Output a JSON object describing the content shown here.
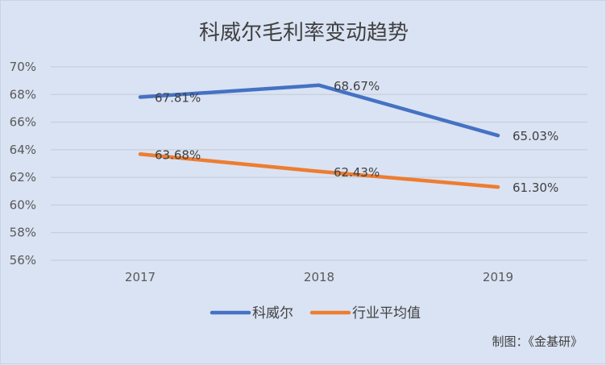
{
  "chart_data": {
    "type": "line",
    "title": "科威尔毛利率变动趋势",
    "categories": [
      "2017",
      "2018",
      "2019"
    ],
    "series": [
      {
        "name": "科威尔",
        "values": [
          67.81,
          68.67,
          65.03
        ],
        "labels": [
          "67.81%",
          "68.67%",
          "65.03%"
        ],
        "color": "#4472c4"
      },
      {
        "name": "行业平均值",
        "values": [
          63.68,
          62.43,
          61.3
        ],
        "labels": [
          "63.68%",
          "62.43%",
          "61.30%"
        ],
        "color": "#ed7d31"
      }
    ],
    "ylim": [
      56,
      70
    ],
    "yticks": [
      70,
      68,
      66,
      64,
      62,
      60,
      58,
      56
    ],
    "ytick_labels": [
      "70%",
      "68%",
      "66%",
      "64%",
      "62%",
      "60%",
      "58%",
      "56%"
    ],
    "grid": true,
    "legend_position": "bottom"
  },
  "source": "制图：《金基研》"
}
